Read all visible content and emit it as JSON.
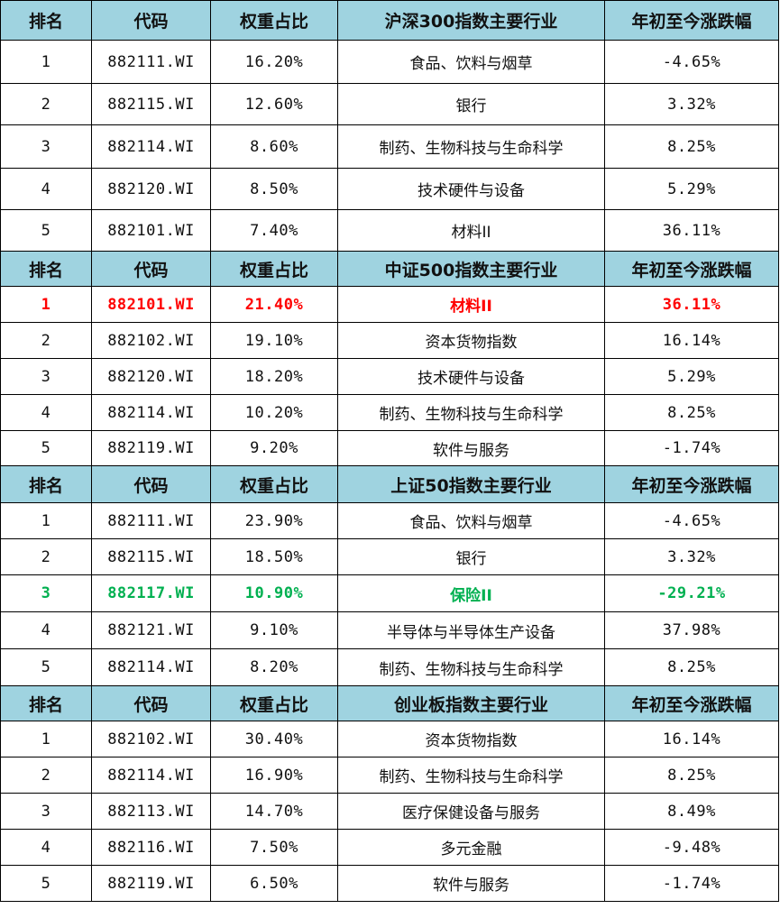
{
  "headers": {
    "rank": "排名",
    "code": "代码",
    "weight": "权重占比",
    "change": "年初至今涨跌幅"
  },
  "colors": {
    "header_bg": "#9fd3e0",
    "highlight_red": "#ff0000",
    "highlight_green": "#00b050"
  },
  "sections": [
    {
      "title": "沪深300指数主要行业",
      "rows": [
        {
          "rank": "1",
          "code": "882111.WI",
          "weight": "16.20%",
          "industry": "食品、饮料与烟草",
          "change": "-4.65%",
          "highlight": ""
        },
        {
          "rank": "2",
          "code": "882115.WI",
          "weight": "12.60%",
          "industry": "银行",
          "change": "3.32%",
          "highlight": ""
        },
        {
          "rank": "3",
          "code": "882114.WI",
          "weight": "8.60%",
          "industry": "制药、生物科技与生命科学",
          "change": "8.25%",
          "highlight": ""
        },
        {
          "rank": "4",
          "code": "882120.WI",
          "weight": "8.50%",
          "industry": "技术硬件与设备",
          "change": "5.29%",
          "highlight": ""
        },
        {
          "rank": "5",
          "code": "882101.WI",
          "weight": "7.40%",
          "industry": "材料II",
          "change": "36.11%",
          "highlight": ""
        }
      ]
    },
    {
      "title": "中证500指数主要行业",
      "rows": [
        {
          "rank": "1",
          "code": "882101.WI",
          "weight": "21.40%",
          "industry": "材料II",
          "change": "36.11%",
          "highlight": "red"
        },
        {
          "rank": "2",
          "code": "882102.WI",
          "weight": "19.10%",
          "industry": "资本货物指数",
          "change": "16.14%",
          "highlight": ""
        },
        {
          "rank": "3",
          "code": "882120.WI",
          "weight": "18.20%",
          "industry": "技术硬件与设备",
          "change": "5.29%",
          "highlight": ""
        },
        {
          "rank": "4",
          "code": "882114.WI",
          "weight": "10.20%",
          "industry": "制药、生物科技与生命科学",
          "change": "8.25%",
          "highlight": ""
        },
        {
          "rank": "5",
          "code": "882119.WI",
          "weight": "9.20%",
          "industry": "软件与服务",
          "change": "-1.74%",
          "highlight": ""
        }
      ]
    },
    {
      "title": "上证50指数主要行业",
      "rows": [
        {
          "rank": "1",
          "code": "882111.WI",
          "weight": "23.90%",
          "industry": "食品、饮料与烟草",
          "change": "-4.65%",
          "highlight": ""
        },
        {
          "rank": "2",
          "code": "882115.WI",
          "weight": "18.50%",
          "industry": "银行",
          "change": "3.32%",
          "highlight": ""
        },
        {
          "rank": "3",
          "code": "882117.WI",
          "weight": "10.90%",
          "industry": "保险II",
          "change": "-29.21%",
          "highlight": "green"
        },
        {
          "rank": "4",
          "code": "882121.WI",
          "weight": "9.10%",
          "industry": "半导体与半导体生产设备",
          "change": "37.98%",
          "highlight": ""
        },
        {
          "rank": "5",
          "code": "882114.WI",
          "weight": "8.20%",
          "industry": "制药、生物科技与生命科学",
          "change": "8.25%",
          "highlight": ""
        }
      ]
    },
    {
      "title": "创业板指数主要行业",
      "rows": [
        {
          "rank": "1",
          "code": "882102.WI",
          "weight": "30.40%",
          "industry": "资本货物指数",
          "change": "16.14%",
          "highlight": ""
        },
        {
          "rank": "2",
          "code": "882114.WI",
          "weight": "16.90%",
          "industry": "制药、生物科技与生命科学",
          "change": "8.25%",
          "highlight": ""
        },
        {
          "rank": "3",
          "code": "882113.WI",
          "weight": "14.70%",
          "industry": "医疗保健设备与服务",
          "change": "8.49%",
          "highlight": ""
        },
        {
          "rank": "4",
          "code": "882116.WI",
          "weight": "7.50%",
          "industry": "多元金融",
          "change": "-9.48%",
          "highlight": ""
        },
        {
          "rank": "5",
          "code": "882119.WI",
          "weight": "6.50%",
          "industry": "软件与服务",
          "change": "-1.74%",
          "highlight": ""
        }
      ]
    }
  ]
}
